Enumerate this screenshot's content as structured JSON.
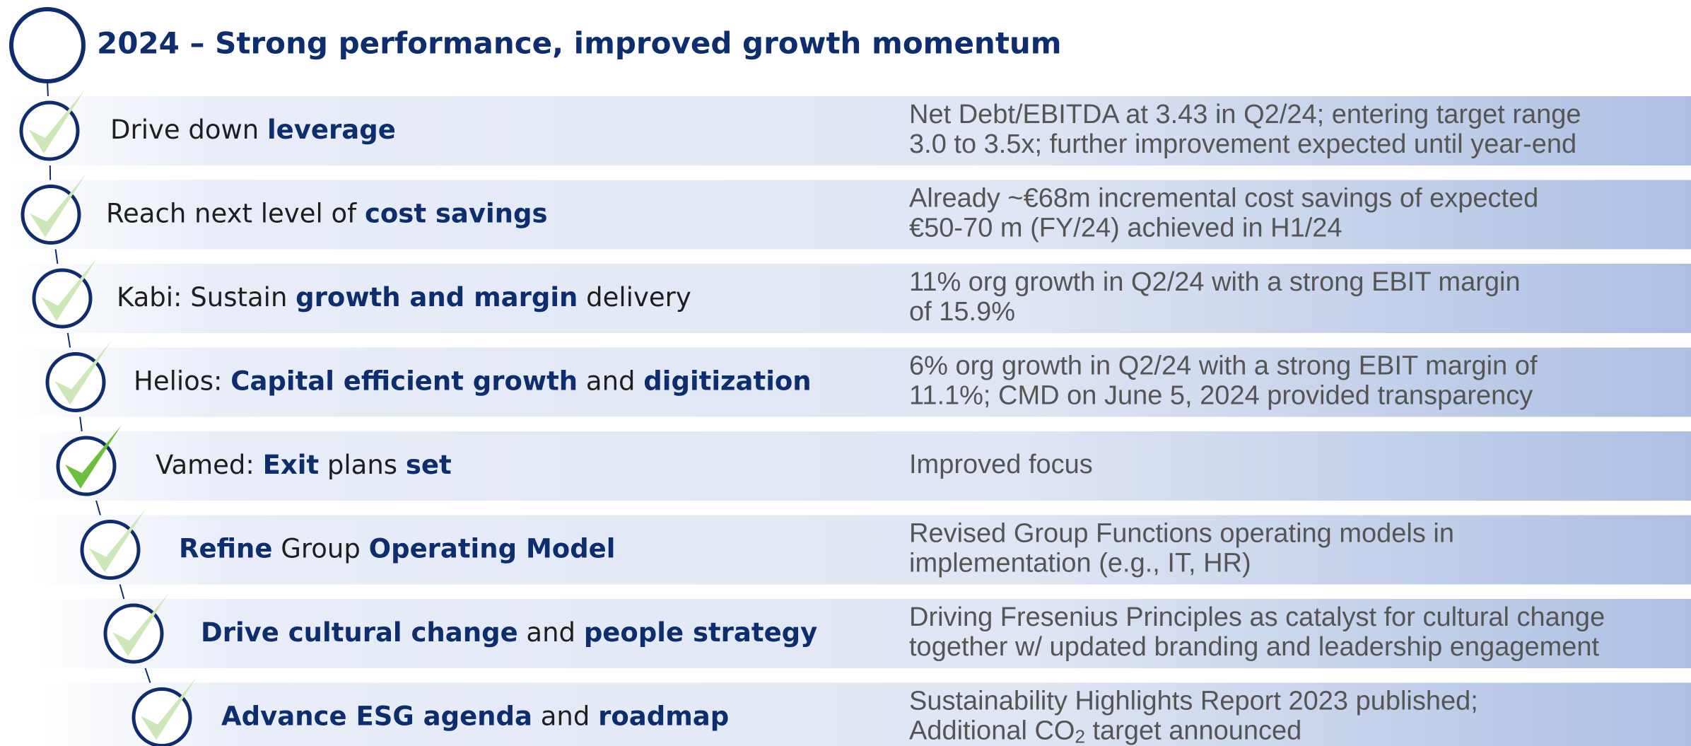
{
  "header": {
    "title": "2024 – Strong performance, improved growth momentum"
  },
  "rows": [
    {
      "label": [
        {
          "text": "Drive down ",
          "bold": false
        },
        {
          "text": "leverage",
          "bold": true
        }
      ],
      "check": "light",
      "detail": [
        "Net Debt/EBITDA at 3.43 in Q2/24; entering target range",
        "3.0 to 3.5x; further improvement expected until year-end"
      ]
    },
    {
      "label": [
        {
          "text": "Reach next level of ",
          "bold": false
        },
        {
          "text": "cost savings",
          "bold": true
        }
      ],
      "check": "light",
      "detail": [
        "Already ~€68m incremental cost savings of expected",
        "€50-70 m (FY/24) achieved in H1/24"
      ]
    },
    {
      "label": [
        {
          "text": "Kabi: Sustain ",
          "bold": false
        },
        {
          "text": "growth and margin",
          "bold": true
        },
        {
          "text": " delivery",
          "bold": false
        }
      ],
      "check": "light",
      "detail": [
        "11% org growth in Q2/24 with a strong EBIT margin",
        "of 15.9%"
      ]
    },
    {
      "label": [
        {
          "text": "Helios: ",
          "bold": false
        },
        {
          "text": "Capital efficient growth",
          "bold": true
        },
        {
          "text": " and ",
          "bold": false
        },
        {
          "text": "digitization",
          "bold": true
        }
      ],
      "check": "light",
      "detail": [
        "6% org growth in Q2/24 with a strong EBIT margin of",
        "11.1%; CMD on June 5, 2024 provided transparency"
      ]
    },
    {
      "label": [
        {
          "text": "Vamed: ",
          "bold": false
        },
        {
          "text": "Exit",
          "bold": true
        },
        {
          "text": " plans ",
          "bold": false
        },
        {
          "text": "set",
          "bold": true
        }
      ],
      "check": "strong",
      "detail": [
        "Improved focus"
      ]
    },
    {
      "label": [
        {
          "text": "Refine",
          "bold": true
        },
        {
          "text": " Group ",
          "bold": false
        },
        {
          "text": "Operating Model",
          "bold": true
        }
      ],
      "check": "light",
      "detail": [
        "Revised Group Functions operating models in",
        "implementation (e.g., IT, HR)"
      ]
    },
    {
      "label": [
        {
          "text": "Drive cultural change",
          "bold": true
        },
        {
          "text": " and ",
          "bold": false
        },
        {
          "text": "people strategy",
          "bold": true
        }
      ],
      "check": "light",
      "detail": [
        "Driving Fresenius Principles as catalyst for cultural change",
        "together w/ updated branding and leadership engagement"
      ]
    },
    {
      "label": [
        {
          "text": "Advance ESG agenda",
          "bold": true
        },
        {
          "text": " and ",
          "bold": false
        },
        {
          "text": "roadmap",
          "bold": true
        }
      ],
      "check": "light",
      "detail": [
        "Sustainability Highlights Report 2023 published;",
        [
          {
            "text": "Additional CO"
          },
          {
            "text": "2",
            "sub": true
          },
          {
            "text": " target announced"
          }
        ]
      ]
    }
  ]
}
